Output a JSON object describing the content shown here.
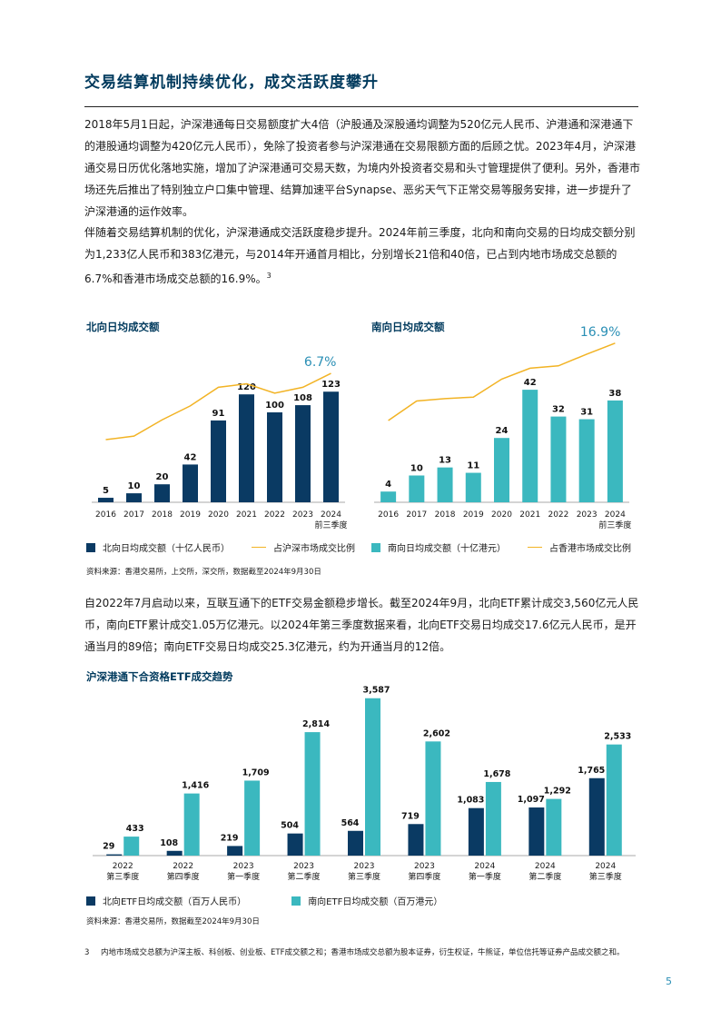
{
  "heading": "交易结算机制持续优化，成交活跃度攀升",
  "paragraphs": {
    "p1": "2018年5月1日起，沪深港通每日交易额度扩大4倍（沪股通及深股通均调整为520亿元人民币、沪港通和深港通下的港股通均调整为420亿元人民币），免除了投资者参与沪深港通在交易限额方面的后顾之忧。2023年4月，沪深港通交易日历优化落地实施，增加了沪深港通可交易天数，为境内外投资者交易和头寸管理提供了便利。另外，香港市场还先后推出了特别独立户口集中管理、结算加速平台Synapse、恶劣天气下正常交易等服务安排，进一步提升了沪深港通的运作效率。",
    "p2": "伴随着交易结算机制的优化，沪深港通成交活跃度稳步提升。2024年前三季度，北向和南向交易的日均成交额分别为1,233亿人民币和383亿港元，与2014年开通首月相比，分别增长21倍和40倍，已占到内地市场成交总额的6.7%和香港市场成交总额的16.9%。",
    "p2_sup": "3",
    "p3": "自2022年7月启动以来，互联互通下的ETF交易金额稳步增长。截至2024年9月，北向ETF累计成交3,560亿元人民币，南向ETF累计成交1.05万亿港元。以2024年第三季度数据来看，北向ETF交易日均成交17.6亿元人民币，是开通当月的89倍；南向ETF交易日均成交25.3亿港元，约为开通当月的12倍。"
  },
  "charts": {
    "north": {
      "title": "北向日均成交额"
    },
    "south": {
      "title": "南向日均成交额"
    },
    "etf": {
      "title": "沪深港通下合资格ETF成交趋势"
    }
  },
  "legends": {
    "north_bar": "北向日均成交额（十亿人民币）",
    "north_line": "占沪深市场成交比例",
    "south_bar": "南向日均成交额（十亿港元）",
    "south_line": "占香港市场成交比例",
    "etf_north": "北向ETF日均成交额（百万人民币）",
    "etf_south": "南向ETF日均成交额（百万港元）"
  },
  "sources": {
    "top": "资料来源：香港交易所，上交所，深交所，数据截至2024年9月30日",
    "bottom": "资料来源：香港交易所，数据截至2024年9月30日"
  },
  "footnote": {
    "num": "3",
    "text": "内地市场成交总额为沪深主板、科创板、创业板、ETF成交额之和；香港市场成交总额为股本证券，衍生权证，牛熊证，单位信托等证券产品成交额之和。"
  },
  "page_number": "5",
  "colors": {
    "navy": "#0a3a63",
    "teal": "#3bb8bf",
    "gold": "#f2b324",
    "heading": "#003a5d"
  },
  "chart_data": [
    {
      "type": "bar",
      "title": "北向日均成交额",
      "categories": [
        "2016",
        "2017",
        "2018",
        "2019",
        "2020",
        "2021",
        "2022",
        "2023",
        "2024\n前三季度"
      ],
      "series": [
        {
          "name": "北向日均成交额（十亿人民币）",
          "type": "bar",
          "values": [
            5,
            10,
            20,
            42,
            91,
            120,
            100,
            108,
            123
          ]
        },
        {
          "name": "占沪深市场成交比例",
          "type": "line",
          "values": [
            1.0,
            1.3,
            2.7,
            3.9,
            5.5,
            5.8,
            5.0,
            5.5,
            6.7
          ]
        }
      ],
      "line_end_label": "6.7%",
      "ylim": [
        0,
        130
      ]
    },
    {
      "type": "bar",
      "title": "南向日均成交额",
      "categories": [
        "2016",
        "2017",
        "2018",
        "2019",
        "2020",
        "2021",
        "2022",
        "2023",
        "2024\n前三季度"
      ],
      "series": [
        {
          "name": "南向日均成交额（十亿港元）",
          "type": "bar",
          "values": [
            4,
            10,
            13,
            11,
            24,
            42,
            32,
            31,
            38
          ]
        },
        {
          "name": "占香港市场成交比例",
          "type": "line",
          "values": [
            7.0,
            9.5,
            9.8,
            10.0,
            12.3,
            13.7,
            14.0,
            15.5,
            16.9
          ]
        }
      ],
      "line_end_label": "16.9%",
      "ylim": [
        0,
        45
      ]
    },
    {
      "type": "bar",
      "title": "沪深港通下合资格ETF成交趋势",
      "categories": [
        "2022\n第三季度",
        "2022\n第四季度",
        "2023\n第一季度",
        "2023\n第二季度",
        "2023\n第三季度",
        "2023\n第四季度",
        "2024\n第一季度",
        "2024\n第二季度",
        "2024\n第三季度"
      ],
      "series": [
        {
          "name": "北向ETF日均成交额（百万人民币）",
          "values": [
            29,
            108,
            219,
            504,
            564,
            719,
            1083,
            1097,
            1765
          ]
        },
        {
          "name": "南向ETF日均成交额（百万港元）",
          "values": [
            433,
            1416,
            1709,
            2814,
            3587,
            2602,
            1678,
            1292,
            2533
          ]
        }
      ],
      "ylim": [
        0,
        3700
      ]
    }
  ]
}
